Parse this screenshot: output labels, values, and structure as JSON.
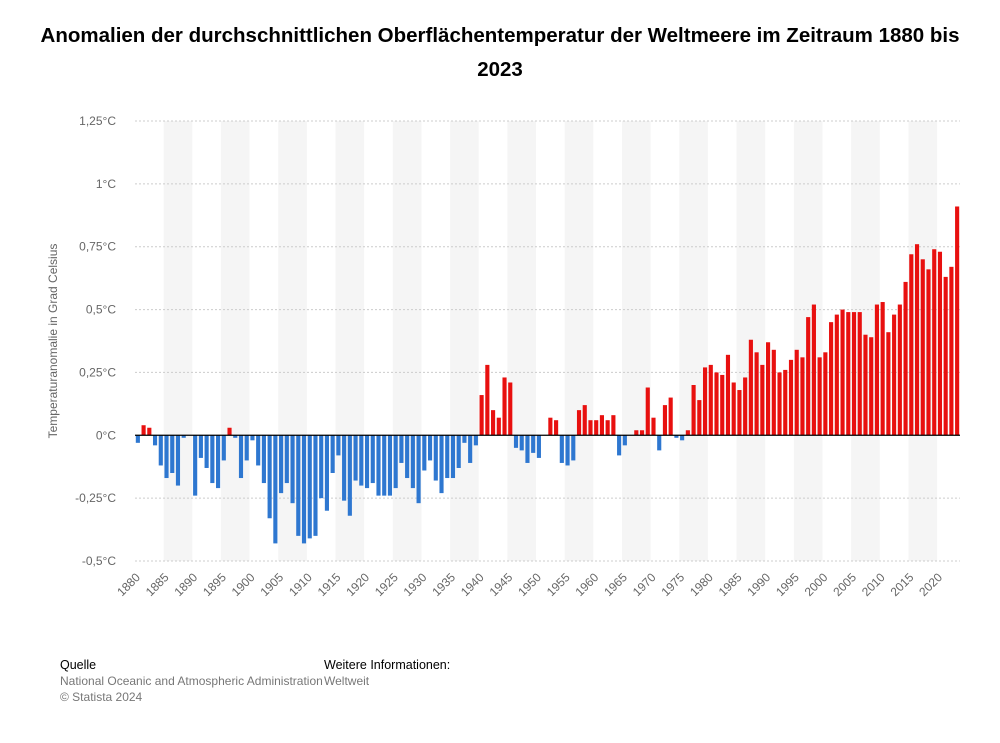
{
  "chart_data": {
    "type": "bar",
    "title": "Anomalien der durchschnittlichen Oberflächentemperatur der Weltmeere im Zeitraum 1880 bis 2023",
    "ylabel": "Temperaturanomalie in Grad Celsius",
    "xlabel": "",
    "ylim": [
      -0.5,
      1.25
    ],
    "yticks": [
      "1,25°C",
      "1°C",
      "0,75°C",
      "0,5°C",
      "0,25°C",
      "0°C",
      "-0,25°C",
      "-0,5°C"
    ],
    "ytick_values": [
      1.25,
      1.0,
      0.75,
      0.5,
      0.25,
      0.0,
      -0.25,
      -0.5
    ],
    "xtick_labels": [
      "1880",
      "1885",
      "1890",
      "1895",
      "1900",
      "1905",
      "1910",
      "1915",
      "1920",
      "1925",
      "1930",
      "1935",
      "1940",
      "1945",
      "1950",
      "1955",
      "1960",
      "1965",
      "1970",
      "1975",
      "1980",
      "1985",
      "1990",
      "1995",
      "2000",
      "2005",
      "2010",
      "2015",
      "2020"
    ],
    "grid": true,
    "colors": {
      "positive": "#e8100f",
      "negative": "#2e77d0",
      "band": "#f5f5f5",
      "grid": "#cccccc"
    },
    "x_start": 1880,
    "x_end": 2023,
    "values": [
      -0.03,
      0.04,
      0.03,
      -0.04,
      -0.12,
      -0.17,
      -0.15,
      -0.2,
      -0.01,
      0.0,
      -0.24,
      -0.09,
      -0.13,
      -0.19,
      -0.21,
      -0.1,
      0.03,
      -0.01,
      -0.17,
      -0.1,
      -0.02,
      -0.12,
      -0.19,
      -0.33,
      -0.43,
      -0.23,
      -0.19,
      -0.27,
      -0.4,
      -0.43,
      -0.41,
      -0.4,
      -0.25,
      -0.3,
      -0.15,
      -0.08,
      -0.26,
      -0.32,
      -0.18,
      -0.2,
      -0.21,
      -0.19,
      -0.24,
      -0.24,
      -0.24,
      -0.21,
      -0.11,
      -0.17,
      -0.21,
      -0.27,
      -0.14,
      -0.1,
      -0.18,
      -0.23,
      -0.17,
      -0.17,
      -0.13,
      -0.03,
      -0.11,
      -0.04,
      0.16,
      0.28,
      0.1,
      0.07,
      0.23,
      0.21,
      -0.05,
      -0.06,
      -0.11,
      -0.07,
      -0.09,
      0.0,
      0.07,
      0.06,
      -0.11,
      -0.12,
      -0.1,
      0.1,
      0.12,
      0.06,
      0.06,
      0.08,
      0.06,
      0.08,
      -0.08,
      -0.04,
      0.0,
      0.02,
      0.02,
      0.19,
      0.07,
      -0.06,
      0.12,
      0.15,
      -0.01,
      -0.02,
      0.02,
      0.2,
      0.14,
      0.27,
      0.28,
      0.25,
      0.24,
      0.32,
      0.21,
      0.18,
      0.23,
      0.38,
      0.33,
      0.28,
      0.37,
      0.34,
      0.25,
      0.26,
      0.3,
      0.34,
      0.31,
      0.47,
      0.52,
      0.31,
      0.33,
      0.45,
      0.48,
      0.5,
      0.49,
      0.49,
      0.49,
      0.4,
      0.39,
      0.52,
      0.53,
      0.41,
      0.48,
      0.52,
      0.61,
      0.72,
      0.76,
      0.7,
      0.66,
      0.74,
      0.73,
      0.63,
      0.67,
      0.91
    ]
  },
  "footer": {
    "source_heading": "Quelle",
    "source_text": "National Oceanic and Atmospheric Administration",
    "copyright": "© Statista 2024",
    "info_heading": "Weitere Informationen:",
    "info_text": "Weltweit"
  }
}
